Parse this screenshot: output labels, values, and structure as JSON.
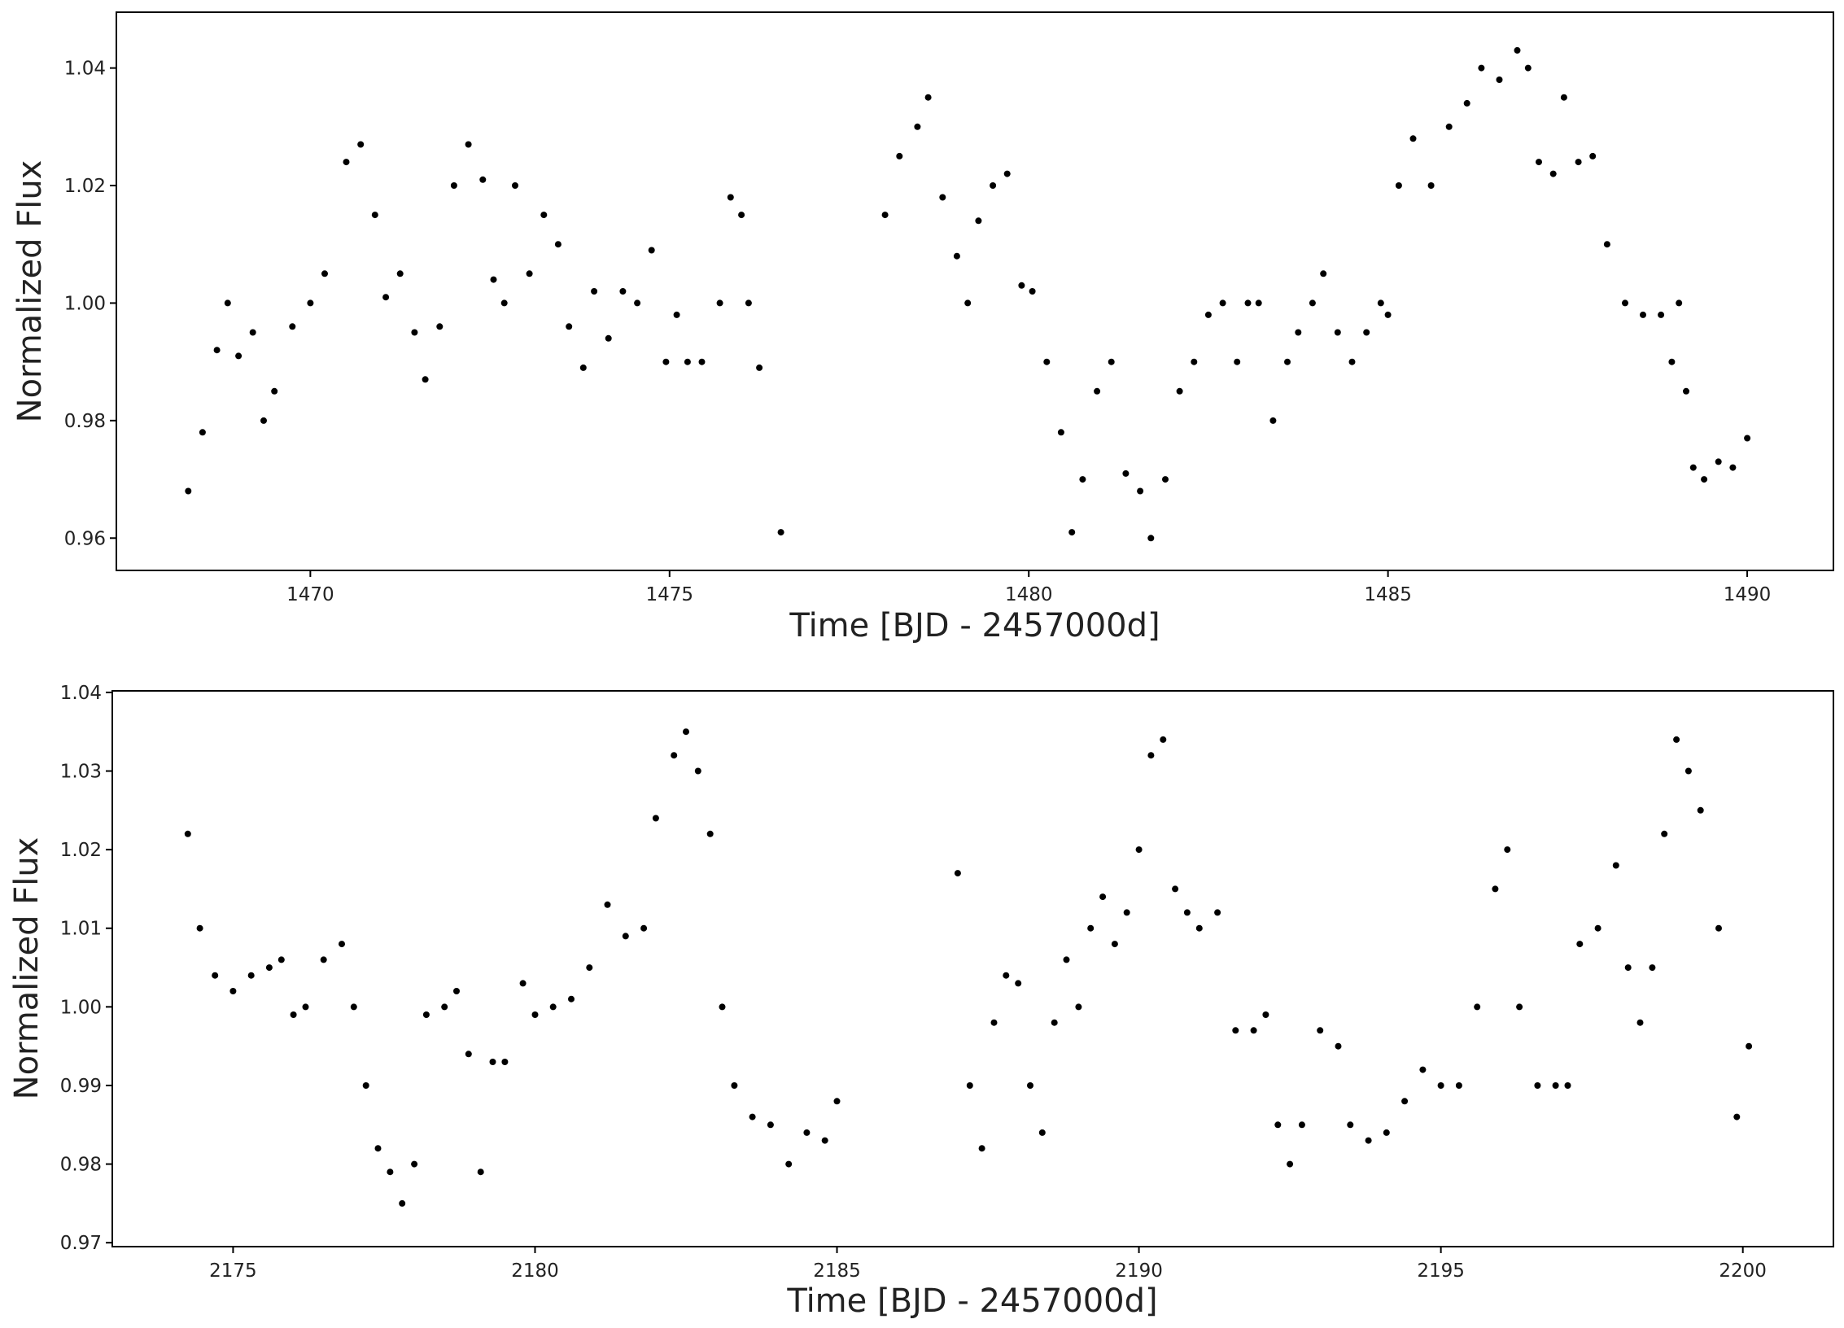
{
  "chart_data": [
    {
      "type": "scatter",
      "xlabel": "Time [BJD - 2457000d]",
      "ylabel": "Normalized Flux",
      "xlim": [
        1467.3,
        1491.2
      ],
      "ylim": [
        0.9545,
        1.0495
      ],
      "xticks": [
        1470,
        1475,
        1480,
        1485,
        1490
      ],
      "xtick_labels": [
        "1470",
        "1475",
        "1480",
        "1485",
        "1490"
      ],
      "yticks": [
        0.96,
        0.98,
        1.0,
        1.02,
        1.04
      ],
      "ytick_labels": [
        "0.96",
        "0.98",
        "1.00",
        "1.02",
        "1.04"
      ],
      "grid": false,
      "marker_color": "#000000",
      "series": [
        {
          "x": [
            1468.3,
            1468.5,
            1468.7,
            1468.85,
            1469.0,
            1469.2,
            1469.35,
            1469.5,
            1469.75,
            1470.0,
            1470.2,
            1470.5,
            1470.7,
            1470.9,
            1471.05,
            1471.25,
            1471.45,
            1471.6,
            1471.8,
            1472.0,
            1472.2,
            1472.4,
            1472.55,
            1472.7,
            1472.85,
            1473.05,
            1473.25,
            1473.45,
            1473.6,
            1473.8,
            1473.95,
            1474.15,
            1474.35,
            1474.55,
            1474.75,
            1474.95,
            1475.1,
            1475.25,
            1475.45,
            1475.7,
            1475.85,
            1476.0,
            1476.1,
            1476.25,
            1476.55
          ],
          "y": [
            0.968,
            0.978,
            0.992,
            1.0,
            0.991,
            0.995,
            0.98,
            0.985,
            0.996,
            1.0,
            1.005,
            1.024,
            1.027,
            1.015,
            1.001,
            1.005,
            0.995,
            0.987,
            0.996,
            1.02,
            1.027,
            1.021,
            1.004,
            1.0,
            1.02,
            1.005,
            1.015,
            1.01,
            0.996,
            0.989,
            1.002,
            0.994,
            1.002,
            1.0,
            1.009,
            0.99,
            0.998,
            0.99,
            0.99,
            1.0,
            1.018,
            1.015,
            1.0,
            0.989,
            0.961
          ]
        },
        {
          "x": [
            1478.0,
            1478.2,
            1478.45,
            1478.6,
            1478.8,
            1479.0,
            1479.15,
            1479.3,
            1479.5,
            1479.7,
            1479.9,
            1480.05,
            1480.25,
            1480.45,
            1480.6,
            1480.75,
            1480.95,
            1481.15,
            1481.35,
            1481.55,
            1481.7,
            1481.9,
            1482.1,
            1482.3,
            1482.5,
            1482.7,
            1482.9,
            1483.05,
            1483.2,
            1483.4,
            1483.6,
            1483.75,
            1483.95,
            1484.1,
            1484.3,
            1484.5,
            1484.7,
            1484.9,
            1485.0,
            1485.15,
            1485.35,
            1485.6,
            1485.85,
            1486.1,
            1486.3,
            1486.55,
            1486.8,
            1486.95,
            1487.1,
            1487.3,
            1487.45,
            1487.65,
            1487.85,
            1488.05,
            1488.3,
            1488.55,
            1488.8,
            1488.95,
            1489.05,
            1489.15,
            1489.25,
            1489.4,
            1489.6,
            1489.8,
            1490.0
          ],
          "y": [
            1.015,
            1.025,
            1.03,
            1.035,
            1.018,
            1.008,
            1.0,
            1.014,
            1.02,
            1.022,
            1.003,
            1.002,
            0.99,
            0.978,
            0.961,
            0.97,
            0.985,
            0.99,
            0.971,
            0.968,
            0.96,
            0.97,
            0.985,
            0.99,
            0.998,
            1.0,
            0.99,
            1.0,
            1.0,
            0.98,
            0.99,
            0.995,
            1.0,
            1.005,
            0.995,
            0.99,
            0.995,
            1.0,
            0.998,
            1.02,
            1.028,
            1.02,
            1.03,
            1.034,
            1.04,
            1.038,
            1.043,
            1.04,
            1.024,
            1.022,
            1.035,
            1.024,
            1.025,
            1.01,
            1.0,
            0.998,
            0.998,
            0.99,
            1.0,
            0.985,
            0.972,
            0.97,
            0.973,
            0.972,
            0.977
          ]
        }
      ]
    },
    {
      "type": "scatter",
      "xlabel": "Time [BJD - 2457000d]",
      "ylabel": "Normalized Flux",
      "xlim": [
        2173.0,
        2201.5
      ],
      "ylim": [
        0.9695,
        1.0402
      ],
      "xticks": [
        2175,
        2180,
        2185,
        2190,
        2195,
        2200
      ],
      "xtick_labels": [
        "2175",
        "2180",
        "2185",
        "2190",
        "2195",
        "2200"
      ],
      "yticks": [
        0.97,
        0.98,
        0.99,
        1.0,
        1.01,
        1.02,
        1.03,
        1.04
      ],
      "ytick_labels": [
        "0.97",
        "0.98",
        "0.99",
        "1.00",
        "1.01",
        "1.02",
        "1.03",
        "1.04"
      ],
      "grid": false,
      "marker_color": "#000000",
      "series": [
        {
          "x": [
            2174.25,
            2174.45,
            2174.7,
            2175.0,
            2175.3,
            2175.6,
            2175.8,
            2176.0,
            2176.2,
            2176.5,
            2176.8,
            2177.0,
            2177.2,
            2177.4,
            2177.6,
            2177.8,
            2178.0,
            2178.2,
            2178.5,
            2178.7,
            2178.9,
            2179.1,
            2179.3,
            2179.5,
            2179.8,
            2180.0,
            2180.3,
            2180.6,
            2180.9,
            2181.2,
            2181.5,
            2181.8,
            2182.0,
            2182.3,
            2182.5,
            2182.7,
            2182.9,
            2183.1,
            2183.3,
            2183.6,
            2183.9,
            2184.2,
            2184.5,
            2184.8,
            2185.0
          ],
          "y": [
            1.022,
            1.01,
            1.004,
            1.002,
            1.004,
            1.005,
            1.006,
            0.999,
            1.0,
            1.006,
            1.008,
            1.0,
            0.99,
            0.982,
            0.979,
            0.975,
            0.98,
            0.999,
            1.0,
            1.002,
            0.994,
            0.979,
            0.993,
            0.993,
            1.003,
            0.999,
            1.0,
            1.001,
            1.005,
            1.013,
            1.009,
            1.01,
            1.024,
            1.032,
            1.035,
            1.03,
            1.022,
            1.0,
            0.99,
            0.986,
            0.985,
            0.98,
            0.984,
            0.983,
            0.988
          ]
        },
        {
          "x": [
            2187.0,
            2187.2,
            2187.4,
            2187.6,
            2187.8,
            2188.0,
            2188.2,
            2188.4,
            2188.6,
            2188.8,
            2189.0,
            2189.2,
            2189.4,
            2189.6,
            2189.8,
            2190.0,
            2190.2,
            2190.4,
            2190.6,
            2190.8,
            2191.0,
            2191.3,
            2191.6,
            2191.9,
            2192.1,
            2192.3,
            2192.5,
            2192.7,
            2193.0,
            2193.3,
            2193.5,
            2193.8,
            2194.1,
            2194.4,
            2194.7,
            2195.0,
            2195.3,
            2195.6,
            2195.9,
            2196.1,
            2196.3,
            2196.6,
            2196.9,
            2197.1,
            2197.3,
            2197.6,
            2197.9,
            2198.1,
            2198.3,
            2198.5,
            2198.7,
            2198.9,
            2199.1,
            2199.3,
            2199.6,
            2199.9,
            2200.1
          ],
          "y": [
            1.017,
            0.99,
            0.982,
            0.998,
            1.004,
            1.003,
            0.99,
            0.984,
            0.998,
            1.006,
            1.0,
            1.01,
            1.014,
            1.008,
            1.012,
            1.02,
            1.032,
            1.034,
            1.015,
            1.012,
            1.01,
            1.012,
            0.997,
            0.997,
            0.999,
            0.985,
            0.98,
            0.985,
            0.997,
            0.995,
            0.985,
            0.983,
            0.984,
            0.988,
            0.992,
            0.99,
            0.99,
            1.0,
            1.015,
            1.02,
            1.0,
            0.99,
            0.99,
            0.99,
            1.008,
            1.01,
            1.018,
            1.005,
            0.998,
            1.005,
            1.022,
            1.034,
            1.03,
            1.025,
            1.01,
            0.986,
            0.995
          ]
        }
      ]
    }
  ]
}
